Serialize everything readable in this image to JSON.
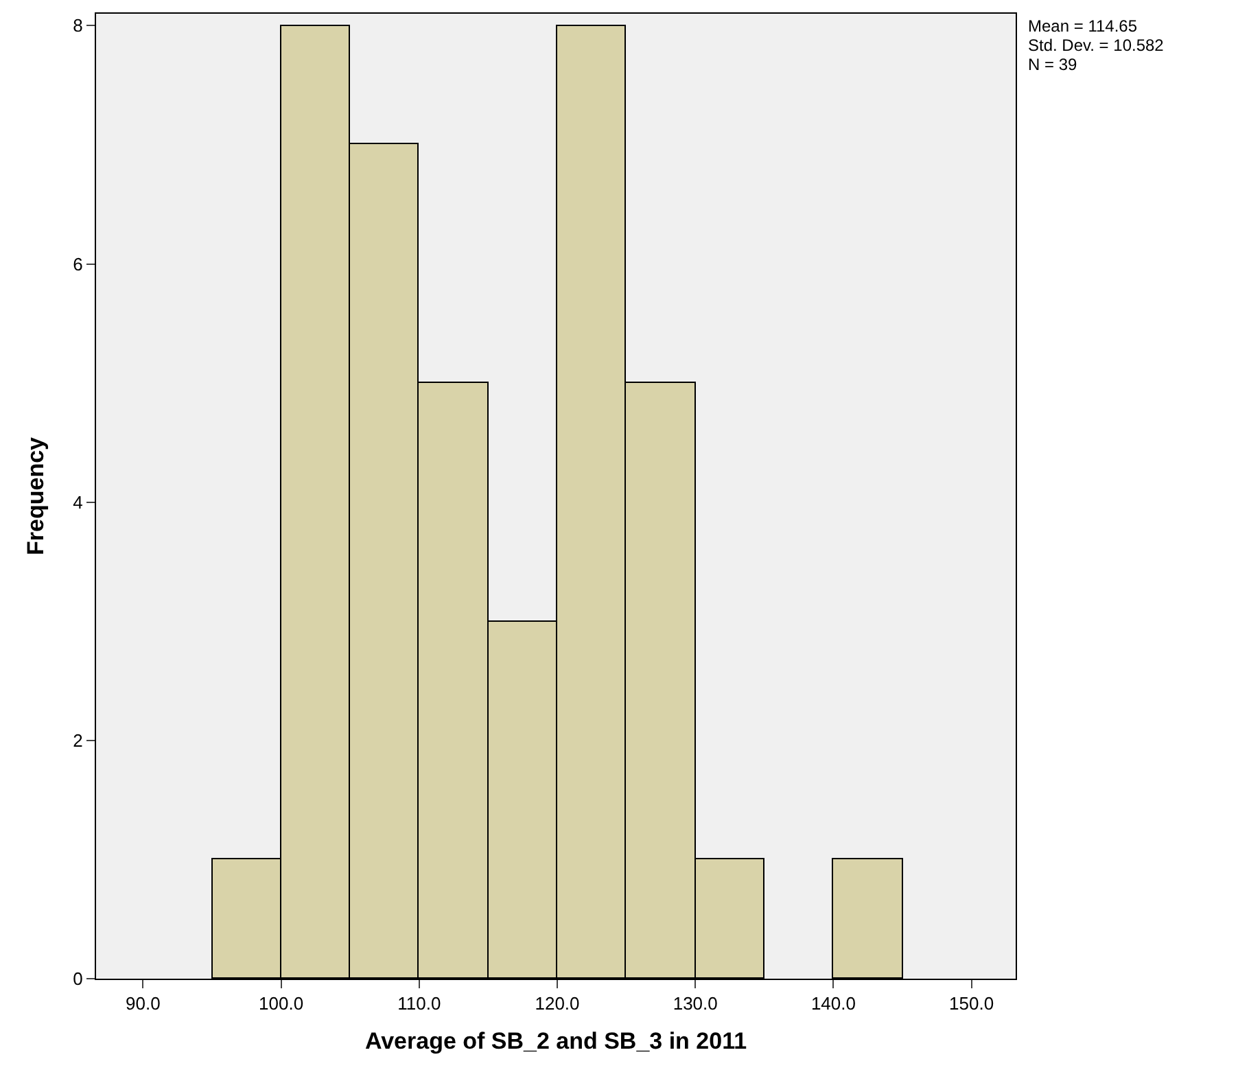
{
  "chart_data": {
    "type": "histogram",
    "xlabel": "Average of SB_2 and SB_3 in 2011",
    "ylabel": "Frequency",
    "bins": [
      95,
      100,
      105,
      110,
      115,
      120,
      125,
      130,
      135,
      140,
      145
    ],
    "values": [
      1,
      8,
      7,
      5,
      3,
      8,
      5,
      1,
      0,
      1
    ],
    "color": "#d9d3a9",
    "xlim": [
      86.6,
      153.2
    ],
    "xticks": [
      {
        "value": 90,
        "label": "90.0"
      },
      {
        "value": 100,
        "label": "100.0"
      },
      {
        "value": 110,
        "label": "110.0"
      },
      {
        "value": 120,
        "label": "120.0"
      },
      {
        "value": 130,
        "label": "130.0"
      },
      {
        "value": 140,
        "label": "140.0"
      },
      {
        "value": 150,
        "label": "150.0"
      }
    ],
    "ylim": [
      0,
      8.1
    ],
    "yticks": [
      0,
      2,
      4,
      6,
      8
    ],
    "grid": false,
    "legend": false,
    "annotations": [
      "Mean = 114.65",
      "Std. Dev. = 10.582",
      "N = 39"
    ]
  }
}
